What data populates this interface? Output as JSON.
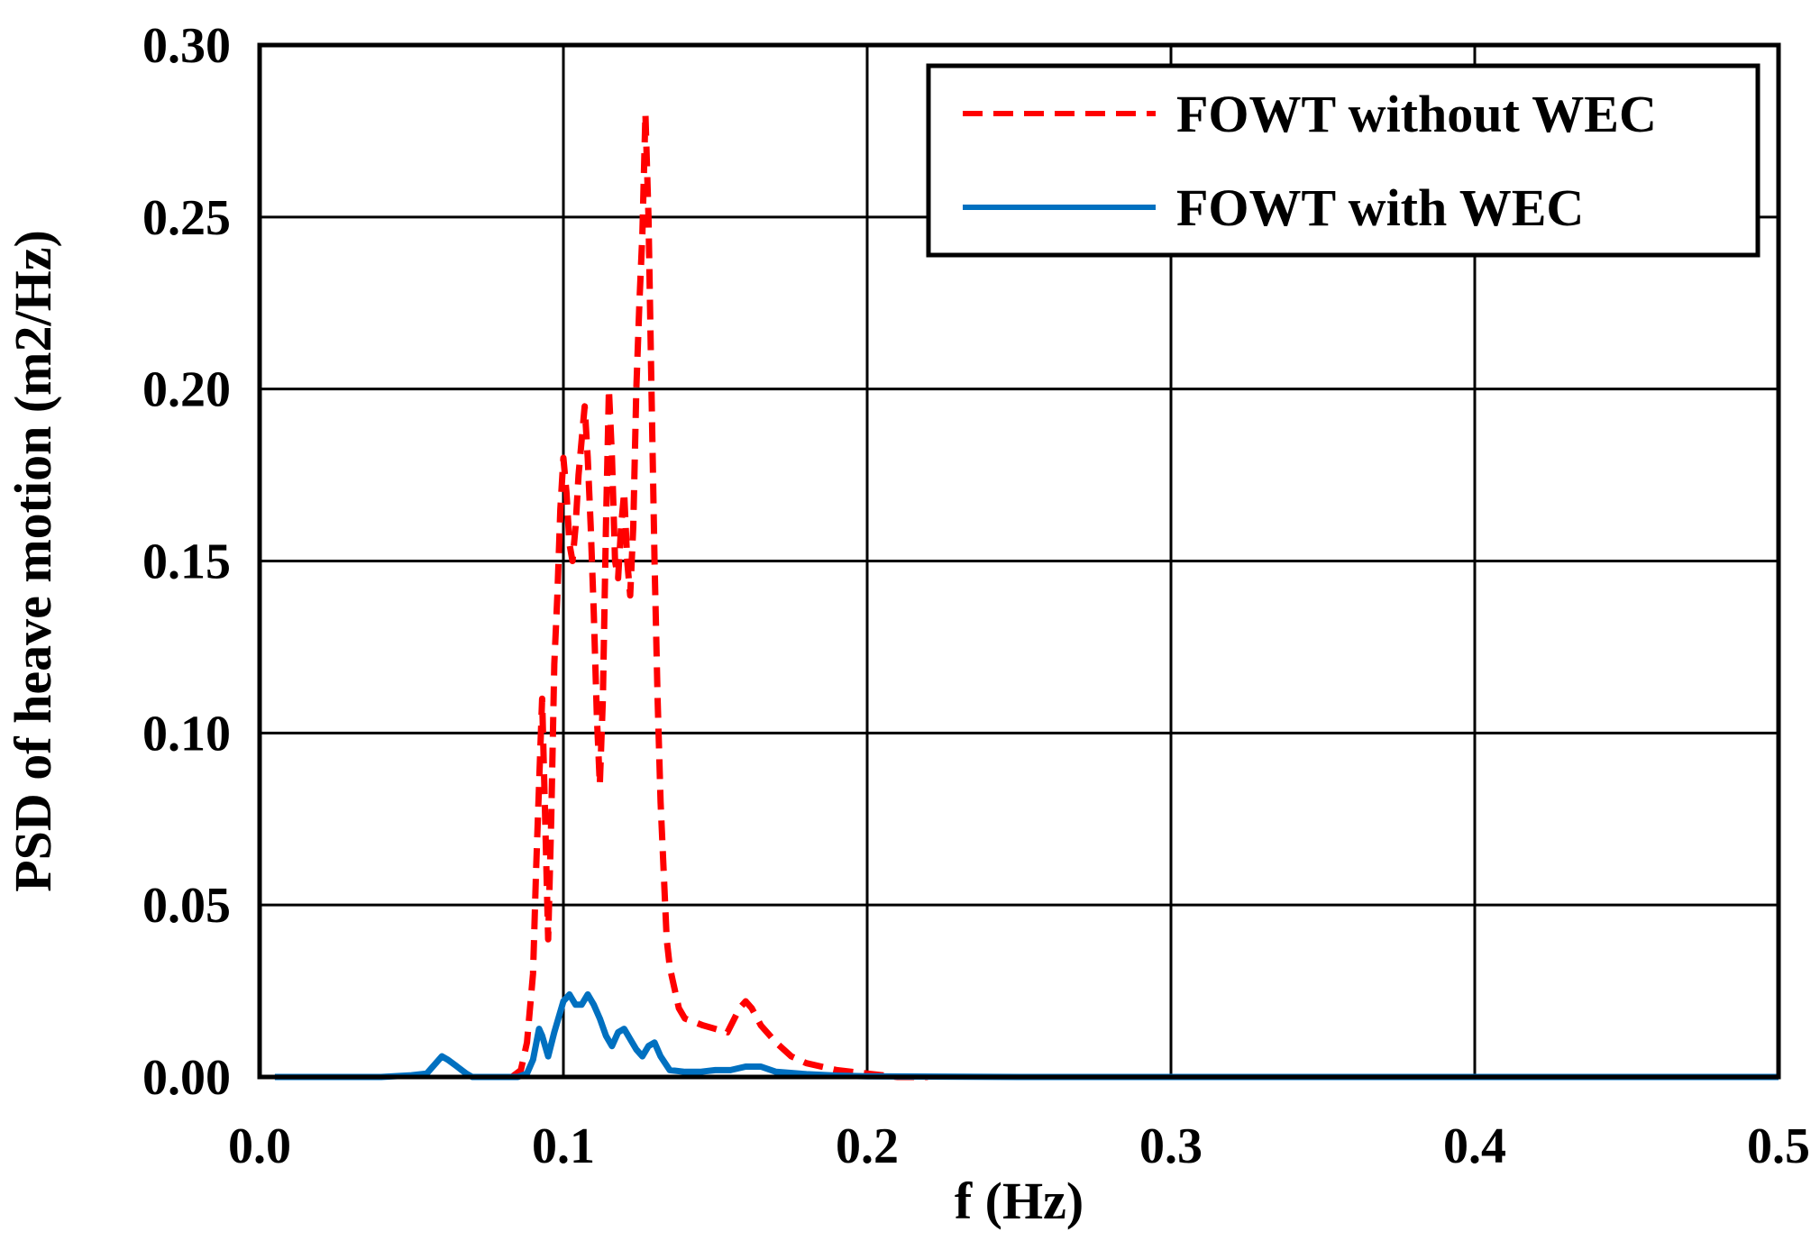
{
  "chart_data": {
    "type": "line",
    "xlabel": "f (Hz)",
    "ylabel": "PSD of heave motion (m2/Hz)",
    "xlim": [
      0.0,
      0.5
    ],
    "ylim": [
      0.0,
      0.3
    ],
    "x_ticks": [
      "0.0",
      "0.1",
      "0.2",
      "0.3",
      "0.4",
      "0.5"
    ],
    "y_ticks": [
      "0.00",
      "0.05",
      "0.10",
      "0.15",
      "0.20",
      "0.25",
      "0.30"
    ],
    "grid": true,
    "legend_position": "top-right",
    "series": [
      {
        "name": "FOWT without WEC",
        "color": "#ff0000",
        "dash": "dashed",
        "x": [
          0.083,
          0.086,
          0.088,
          0.09,
          0.091,
          0.092,
          0.093,
          0.094,
          0.095,
          0.096,
          0.097,
          0.098,
          0.099,
          0.1,
          0.101,
          0.102,
          0.103,
          0.104,
          0.105,
          0.106,
          0.107,
          0.108,
          0.109,
          0.11,
          0.111,
          0.112,
          0.113,
          0.114,
          0.115,
          0.116,
          0.117,
          0.118,
          0.119,
          0.12,
          0.121,
          0.122,
          0.123,
          0.124,
          0.125,
          0.126,
          0.127,
          0.128,
          0.129,
          0.13,
          0.131,
          0.132,
          0.133,
          0.134,
          0.135,
          0.136,
          0.138,
          0.14,
          0.143,
          0.146,
          0.15,
          0.154,
          0.158,
          0.16,
          0.162,
          0.165,
          0.17,
          0.175,
          0.18,
          0.19,
          0.2,
          0.21,
          0.22
        ],
        "y": [
          0.0,
          0.002,
          0.01,
          0.03,
          0.06,
          0.085,
          0.11,
          0.075,
          0.04,
          0.075,
          0.12,
          0.14,
          0.165,
          0.18,
          0.17,
          0.155,
          0.15,
          0.16,
          0.175,
          0.185,
          0.195,
          0.18,
          0.16,
          0.135,
          0.105,
          0.085,
          0.11,
          0.16,
          0.2,
          0.18,
          0.15,
          0.145,
          0.16,
          0.17,
          0.15,
          0.14,
          0.16,
          0.2,
          0.225,
          0.245,
          0.28,
          0.25,
          0.2,
          0.15,
          0.11,
          0.08,
          0.06,
          0.04,
          0.032,
          0.028,
          0.02,
          0.017,
          0.016,
          0.015,
          0.014,
          0.013,
          0.02,
          0.022,
          0.02,
          0.015,
          0.01,
          0.006,
          0.004,
          0.002,
          0.001,
          0.0,
          0.0
        ]
      },
      {
        "name": "FOWT with WEC",
        "color": "#0070c0",
        "dash": "solid",
        "x": [
          0.005,
          0.04,
          0.05,
          0.055,
          0.06,
          0.062,
          0.065,
          0.068,
          0.07,
          0.08,
          0.085,
          0.088,
          0.09,
          0.092,
          0.093,
          0.095,
          0.097,
          0.1,
          0.102,
          0.104,
          0.106,
          0.108,
          0.11,
          0.112,
          0.114,
          0.116,
          0.118,
          0.12,
          0.122,
          0.124,
          0.126,
          0.128,
          0.13,
          0.132,
          0.135,
          0.14,
          0.145,
          0.15,
          0.155,
          0.16,
          0.165,
          0.17,
          0.18,
          0.19,
          0.2,
          0.25,
          0.3,
          0.35,
          0.4,
          0.45,
          0.5
        ],
        "y": [
          0.0,
          0.0,
          0.0005,
          0.001,
          0.006,
          0.005,
          0.003,
          0.001,
          0.0,
          0.0,
          0.0,
          0.001,
          0.005,
          0.014,
          0.012,
          0.006,
          0.013,
          0.022,
          0.024,
          0.021,
          0.021,
          0.024,
          0.021,
          0.017,
          0.012,
          0.009,
          0.013,
          0.014,
          0.011,
          0.008,
          0.006,
          0.009,
          0.01,
          0.006,
          0.002,
          0.0015,
          0.0015,
          0.002,
          0.002,
          0.003,
          0.003,
          0.0015,
          0.0008,
          0.0004,
          0.0002,
          0.0,
          0.0,
          0.0,
          0.0,
          0.0,
          0.0
        ]
      }
    ]
  }
}
